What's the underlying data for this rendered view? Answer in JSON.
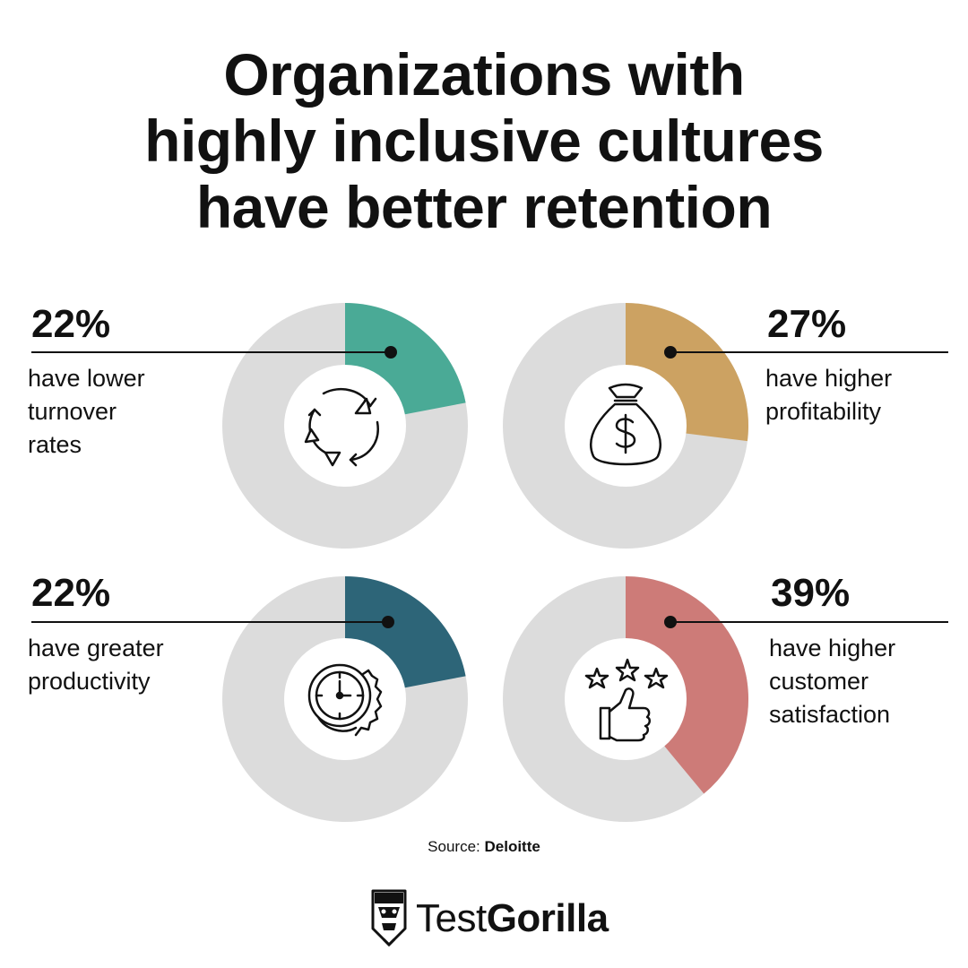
{
  "title_lines": [
    "Organizations with",
    "highly inclusive cultures",
    "have better retention"
  ],
  "chart_data": [
    {
      "type": "pie",
      "values": [
        22,
        78
      ],
      "value_label": "22%",
      "description_lines": [
        "have lower",
        "turnover",
        "rates"
      ],
      "color": "#4aaa96",
      "icon": "recycle-arrows-icon"
    },
    {
      "type": "pie",
      "values": [
        27,
        73
      ],
      "value_label": "27%",
      "description_lines": [
        "have higher",
        "profitability"
      ],
      "color": "#cca262",
      "icon": "money-bag-icon"
    },
    {
      "type": "pie",
      "values": [
        22,
        78
      ],
      "value_label": "22%",
      "description_lines": [
        "have greater",
        "productivity"
      ],
      "color": "#2d6578",
      "icon": "clock-gear-icon"
    },
    {
      "type": "pie",
      "values": [
        39,
        61
      ],
      "value_label": "39%",
      "description_lines": [
        "have higher",
        "customer",
        "satisfaction"
      ],
      "color": "#cd7b78",
      "icon": "stars-thumbs-up-icon"
    }
  ],
  "remainder_color": "#dcdcdc",
  "source": {
    "label": "Source:",
    "name": "Deloitte"
  },
  "brand": {
    "light": "Test",
    "bold": "Gorilla"
  }
}
